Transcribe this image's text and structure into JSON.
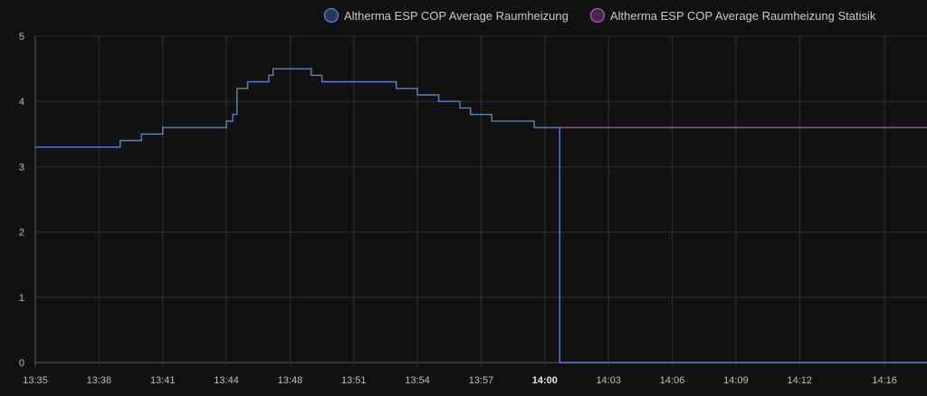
{
  "chart_data": {
    "type": "line",
    "title": "",
    "xlabel": "",
    "ylabel": "",
    "ylim": [
      0,
      5
    ],
    "y_ticks": [
      "0",
      "1",
      "2",
      "3",
      "4",
      "5"
    ],
    "x_range": [
      "13:35",
      "14:17"
    ],
    "x_ticks": [
      {
        "label": "13:35",
        "t": "13:35",
        "bold": false
      },
      {
        "label": "13:38",
        "t": "13:38",
        "bold": false
      },
      {
        "label": "13:41",
        "t": "13:41",
        "bold": false
      },
      {
        "label": "13:44",
        "t": "13:44",
        "bold": false
      },
      {
        "label": "13:48",
        "t": "13:47",
        "bold": false
      },
      {
        "label": "13:51",
        "t": "13:50",
        "bold": false
      },
      {
        "label": "13:54",
        "t": "13:53",
        "bold": false
      },
      {
        "label": "13:57",
        "t": "13:56",
        "bold": false
      },
      {
        "label": "14:00",
        "t": "13:59",
        "bold": true
      },
      {
        "label": "14:03",
        "t": "14:02",
        "bold": false
      },
      {
        "label": "14:06",
        "t": "14:05",
        "bold": false
      },
      {
        "label": "14:09",
        "t": "14:08",
        "bold": false
      },
      {
        "label": "14:12",
        "t": "14:11",
        "bold": false
      },
      {
        "label": "14:16",
        "t": "14:15",
        "bold": false
      }
    ],
    "grid": true,
    "legend_position": "top-right",
    "series": [
      {
        "name": "Altherma ESP COP Average Raumheizung",
        "color": "#5b82c8",
        "step": true,
        "points": [
          [
            "13:35",
            3.3
          ],
          [
            "13:39",
            3.4
          ],
          [
            "13:40",
            3.5
          ],
          [
            "13:41",
            3.6
          ],
          [
            "13:44",
            3.7
          ],
          [
            "13:44.3",
            3.8
          ],
          [
            "13:44.5",
            4.2
          ],
          [
            "13:45",
            4.3
          ],
          [
            "13:46",
            4.4
          ],
          [
            "13:46.2",
            4.5
          ],
          [
            "13:48",
            4.4
          ],
          [
            "13:48.5",
            4.3
          ],
          [
            "13:52",
            4.2
          ],
          [
            "13:53",
            4.1
          ],
          [
            "13:54",
            4.0
          ],
          [
            "13:55",
            3.9
          ],
          [
            "13:55.5",
            3.8
          ],
          [
            "13:56.5",
            3.7
          ],
          [
            "13:58.5",
            3.6
          ],
          [
            "13:59.7",
            0
          ],
          [
            "14:17",
            0
          ]
        ]
      },
      {
        "name": "Altherma ESP COP Average Raumheizung Statisik",
        "color": "#b04fb8",
        "step": true,
        "points": [
          [
            "13:59.7",
            3.6
          ],
          [
            "14:17",
            3.6
          ]
        ]
      }
    ]
  }
}
